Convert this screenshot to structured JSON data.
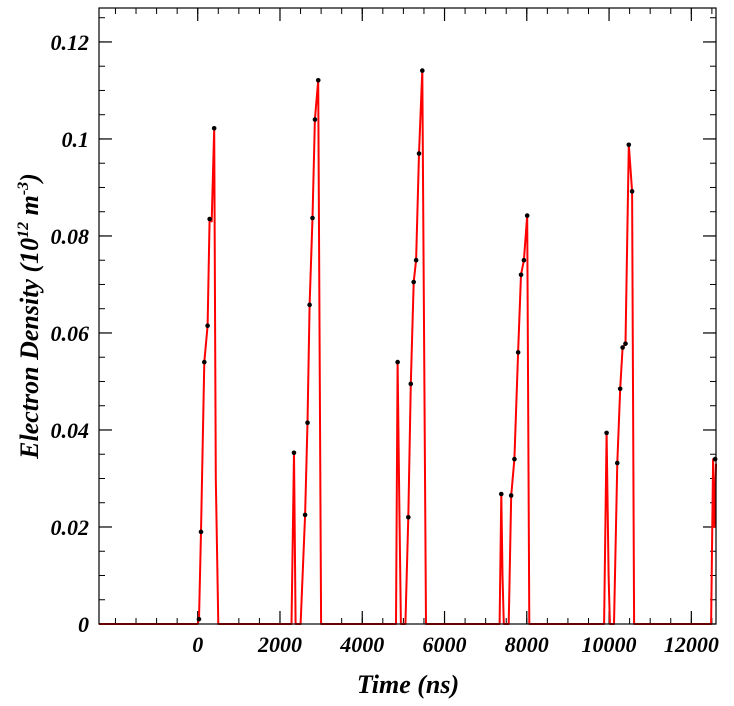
{
  "chart_data": {
    "type": "line",
    "title": "",
    "xlabel": "Time (ns)",
    "ylabel": {
      "prefix": "Electron Density (10",
      "exp1": "12",
      "mid": " m",
      "exp2": "-3",
      "suffix": ")"
    },
    "xlim": [
      -2400,
      12600
    ],
    "ylim": [
      0,
      0.127
    ],
    "xticks": [
      {
        "value": 0,
        "label": "0"
      },
      {
        "value": 2000,
        "label": "2000"
      },
      {
        "value": 4000,
        "label": "4000"
      },
      {
        "value": 6000,
        "label": "6000"
      },
      {
        "value": 8000,
        "label": "8000"
      },
      {
        "value": 10000,
        "label": "10000"
      },
      {
        "value": 12000,
        "label": "12000"
      }
    ],
    "xminor_step": 500,
    "yticks": [
      {
        "value": 0,
        "label": "0"
      },
      {
        "value": 0.02,
        "label": "0.02"
      },
      {
        "value": 0.04,
        "label": "0.04"
      },
      {
        "value": 0.06,
        "label": "0.06"
      },
      {
        "value": 0.08,
        "label": "0.08"
      },
      {
        "value": 0.1,
        "label": "0.1"
      },
      {
        "value": 0.12,
        "label": "0.12"
      }
    ],
    "yminor_step": 0.005,
    "grid": false,
    "series": [
      {
        "color": "#ff0000",
        "marker_color": "#000000",
        "line": [
          [
            -2400,
            0
          ],
          [
            0,
            0
          ],
          [
            30,
            0.001
          ],
          [
            80,
            0.019
          ],
          [
            160,
            0.054
          ],
          [
            240,
            0.0615
          ],
          [
            290,
            0.0835
          ],
          [
            340,
            0.083
          ],
          [
            400,
            0.1022
          ],
          [
            440,
            0.03
          ],
          [
            500,
            0
          ],
          [
            2280,
            0
          ],
          [
            2340,
            0.0353
          ],
          [
            2380,
            0
          ],
          [
            2400,
            0
          ],
          [
            2500,
            0
          ],
          [
            2610,
            0.0225
          ],
          [
            2670,
            0.0415
          ],
          [
            2720,
            0.0658
          ],
          [
            2790,
            0.0837
          ],
          [
            2850,
            0.104
          ],
          [
            2930,
            0.1121
          ],
          [
            3000,
            0
          ],
          [
            4820,
            0
          ],
          [
            4860,
            0.054
          ],
          [
            4900,
            0.025
          ],
          [
            4940,
            0
          ],
          [
            5050,
            0
          ],
          [
            5120,
            0.022
          ],
          [
            5180,
            0.0495
          ],
          [
            5250,
            0.0705
          ],
          [
            5310,
            0.075
          ],
          [
            5380,
            0.097
          ],
          [
            5460,
            0.1141
          ],
          [
            5550,
            0
          ],
          [
            7340,
            0
          ],
          [
            7380,
            0.0268
          ],
          [
            7410,
            0.01
          ],
          [
            7440,
            0
          ],
          [
            7560,
            0
          ],
          [
            7620,
            0.0265
          ],
          [
            7700,
            0.034
          ],
          [
            7790,
            0.056
          ],
          [
            7860,
            0.072
          ],
          [
            7930,
            0.075
          ],
          [
            8010,
            0.0842
          ],
          [
            8060,
            0
          ],
          [
            9880,
            0
          ],
          [
            9940,
            0.0394
          ],
          [
            9990,
            0.01
          ],
          [
            10020,
            0
          ],
          [
            10120,
            0
          ],
          [
            10200,
            0.0332
          ],
          [
            10270,
            0.0485
          ],
          [
            10330,
            0.057
          ],
          [
            10400,
            0.0578
          ],
          [
            10480,
            0.0988
          ],
          [
            10560,
            0.0892
          ],
          [
            10610,
            0
          ],
          [
            12480,
            0
          ],
          [
            12530,
            0.034
          ],
          [
            12560,
            0.02
          ],
          [
            12600,
            0.033
          ]
        ],
        "markers": [
          [
            30,
            0.001
          ],
          [
            80,
            0.019
          ],
          [
            160,
            0.054
          ],
          [
            240,
            0.0615
          ],
          [
            290,
            0.0835
          ],
          [
            400,
            0.1022
          ],
          [
            2340,
            0.0353
          ],
          [
            2610,
            0.0225
          ],
          [
            2670,
            0.0415
          ],
          [
            2720,
            0.0658
          ],
          [
            2790,
            0.0837
          ],
          [
            2850,
            0.104
          ],
          [
            2930,
            0.1121
          ],
          [
            4860,
            0.054
          ],
          [
            5120,
            0.022
          ],
          [
            5180,
            0.0495
          ],
          [
            5250,
            0.0705
          ],
          [
            5310,
            0.075
          ],
          [
            5380,
            0.097
          ],
          [
            5460,
            0.1141
          ],
          [
            7380,
            0.0268
          ],
          [
            7620,
            0.0265
          ],
          [
            7700,
            0.034
          ],
          [
            7790,
            0.056
          ],
          [
            7860,
            0.072
          ],
          [
            7930,
            0.075
          ],
          [
            8010,
            0.0842
          ],
          [
            9940,
            0.0394
          ],
          [
            10200,
            0.0332
          ],
          [
            10270,
            0.0485
          ],
          [
            10330,
            0.057
          ],
          [
            10400,
            0.0578
          ],
          [
            10480,
            0.0988
          ],
          [
            10560,
            0.0892
          ],
          [
            12580,
            0.034
          ]
        ]
      }
    ]
  }
}
